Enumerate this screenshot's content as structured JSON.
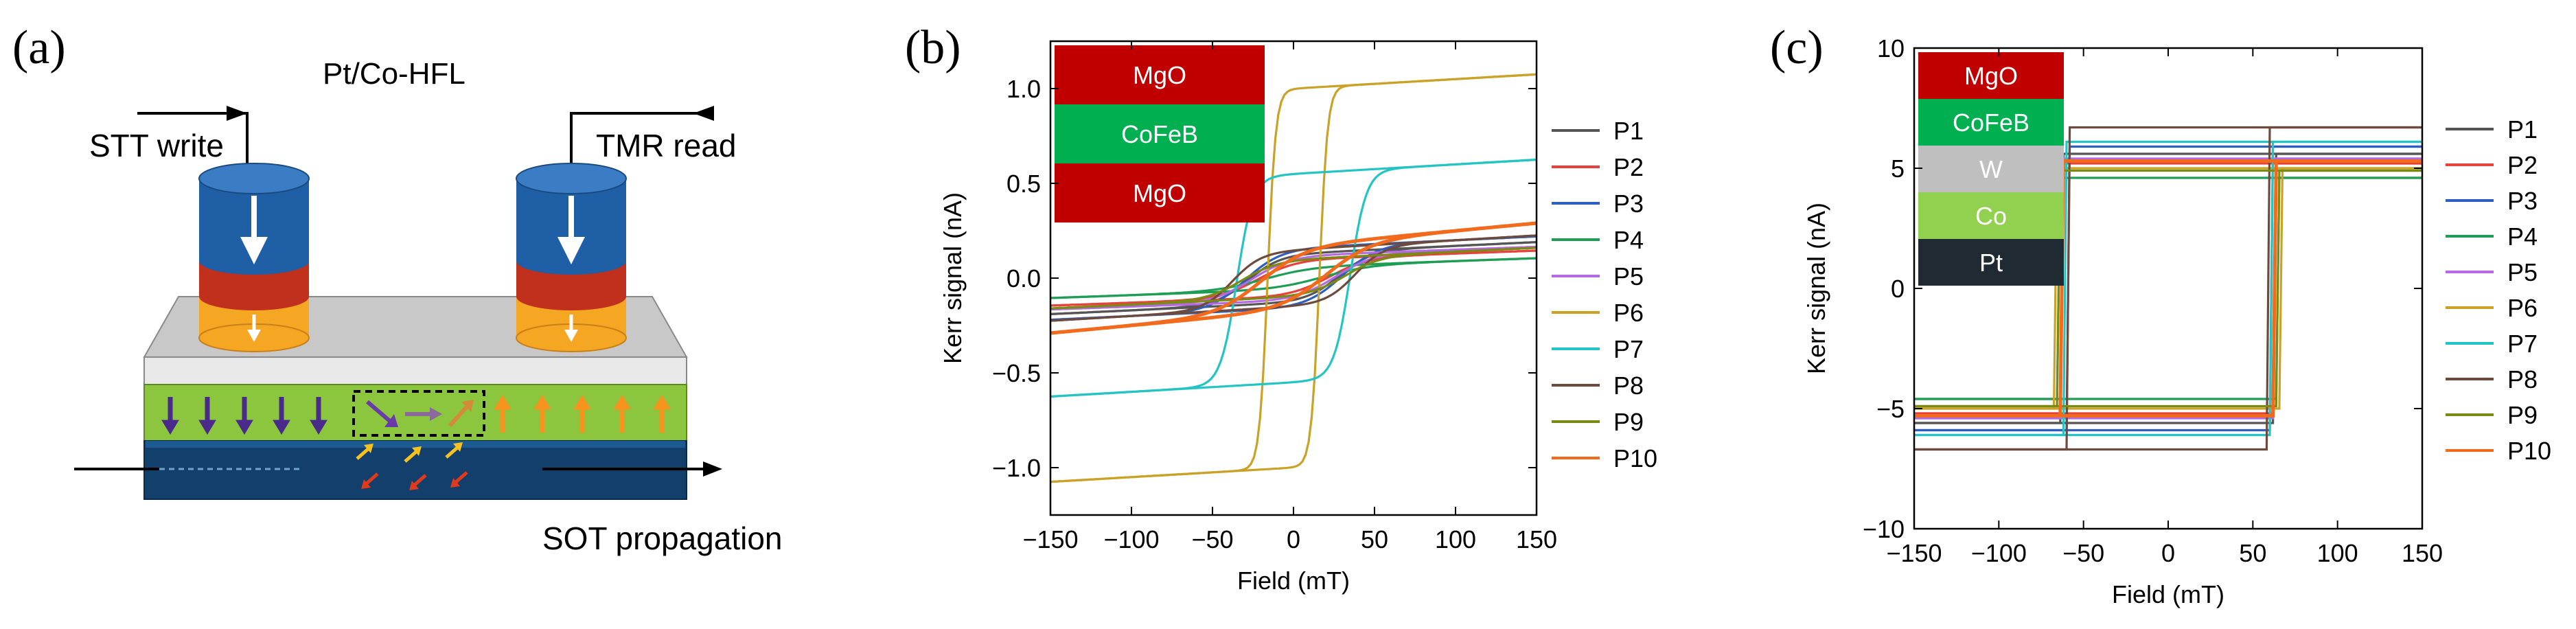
{
  "panel_a": {
    "label": "(a)",
    "title": "Pt/Co-HFL",
    "stt_label": "STT write",
    "tmr_label": "TMR read",
    "sot_label": "SOT propagation",
    "colors": {
      "pillar_blue": "#1f5fa6",
      "pillar_red": "#c0301c",
      "pillar_orange": "#f5a623",
      "slab_gray": "#c8c8c8",
      "green_layer": "#8cc63f",
      "blue_layer": "#123f6b",
      "arrow_purple": "#4a2a8a",
      "arrow_orange": "#f7941d"
    }
  },
  "legend_b": [
    "P1",
    "P2",
    "P3",
    "P4",
    "P5",
    "P6",
    "P7",
    "P8",
    "P9",
    "P10"
  ],
  "legend_c": [
    "P1",
    "P2",
    "P3",
    "P4",
    "P5",
    "P6",
    "P7",
    "P8",
    "P9",
    "P10"
  ],
  "series_colors": [
    "#555555",
    "#e8413c",
    "#2e5fc0",
    "#1f9d55",
    "#b36ae2",
    "#c9a227",
    "#25c4c4",
    "#6d4a3e",
    "#7a8a14",
    "#f26a1b"
  ],
  "stack_b": [
    {
      "name": "MgO",
      "color": "#c00000"
    },
    {
      "name": "CoFeB",
      "color": "#00b050"
    },
    {
      "name": "MgO",
      "color": "#c00000"
    }
  ],
  "stack_c": [
    {
      "name": "MgO",
      "color": "#c00000"
    },
    {
      "name": "CoFeB",
      "color": "#00b050"
    },
    {
      "name": "W",
      "color": "#bfbfbf"
    },
    {
      "name": "Co",
      "color": "#92d050"
    },
    {
      "name": "Pt",
      "color": "#1f2a33"
    }
  ],
  "chart_data": [
    {
      "panel": "(b)",
      "type": "line",
      "xlabel": "Field (mT)",
      "ylabel": "Kerr signal (nA)",
      "xlim": [
        -150,
        150
      ],
      "ylim": [
        -1.25,
        1.25
      ],
      "xticks": [
        -150,
        -100,
        -50,
        0,
        50,
        100,
        150
      ],
      "yticks": [
        -1.0,
        -0.5,
        0.0,
        0.5,
        1.0
      ],
      "xtick_labels": [
        "−150",
        "−100",
        "−50",
        "0",
        "50",
        "100",
        "150"
      ],
      "ytick_labels": [
        "−1.0",
        "−0.5",
        "0.0",
        "0.5",
        "1.0"
      ],
      "series": [
        {
          "name": "P1",
          "sat": 0.13,
          "hc": 28,
          "w": 20,
          "slope": 0.0004
        },
        {
          "name": "P2",
          "sat": 0.1,
          "hc": 22,
          "w": 24,
          "slope": 0.0003
        },
        {
          "name": "P3",
          "sat": 0.16,
          "hc": 30,
          "w": 22,
          "slope": 0.0004
        },
        {
          "name": "P4",
          "sat": 0.06,
          "hc": 18,
          "w": 30,
          "slope": 0.0003
        },
        {
          "name": "P5",
          "sat": 0.12,
          "hc": 26,
          "w": 24,
          "slope": 0.0003
        },
        {
          "name": "P6",
          "sat": 1.0,
          "hc": 16,
          "w": 5,
          "slope": 0.0005
        },
        {
          "name": "P7",
          "sat": 0.55,
          "hc": 35,
          "w": 10,
          "slope": 0.0005
        },
        {
          "name": "P8",
          "sat": 0.15,
          "hc": 38,
          "w": 18,
          "slope": 0.0005
        },
        {
          "name": "P9",
          "sat": 0.1,
          "hc": 32,
          "w": 22,
          "slope": 0.0004
        },
        {
          "name": "P10",
          "sat": 0.17,
          "hc": 20,
          "w": 28,
          "slope": 0.0008
        }
      ]
    },
    {
      "panel": "(c)",
      "type": "line",
      "xlabel": "Field (mT)",
      "ylabel": "Kerr signal (nA)",
      "xlim": [
        -150,
        150
      ],
      "ylim": [
        -10,
        10
      ],
      "xticks": [
        -150,
        -100,
        -50,
        0,
        50,
        100,
        150
      ],
      "yticks": [
        -10,
        -5,
        0,
        5,
        10
      ],
      "xtick_labels": [
        "−150",
        "−100",
        "−50",
        "0",
        "50",
        "100",
        "150"
      ],
      "ytick_labels": [
        "−10",
        "−5",
        "0",
        "5",
        "10"
      ],
      "series": [
        {
          "name": "P1",
          "sat": 5.6,
          "hc": 62
        },
        {
          "name": "P2",
          "sat": 5.2,
          "hc": 63
        },
        {
          "name": "P3",
          "sat": 5.9,
          "hc": 60
        },
        {
          "name": "P4",
          "sat": 4.6,
          "hc": 64
        },
        {
          "name": "P5",
          "sat": 5.4,
          "hc": 62
        },
        {
          "name": "P6",
          "sat": 5.0,
          "hc": 66
        },
        {
          "name": "P7",
          "sat": 6.1,
          "hc": 61
        },
        {
          "name": "P8",
          "sat": 6.7,
          "hc": 59
        },
        {
          "name": "P9",
          "sat": 4.9,
          "hc": 65
        },
        {
          "name": "P10",
          "sat": 5.3,
          "hc": 63
        }
      ]
    }
  ]
}
